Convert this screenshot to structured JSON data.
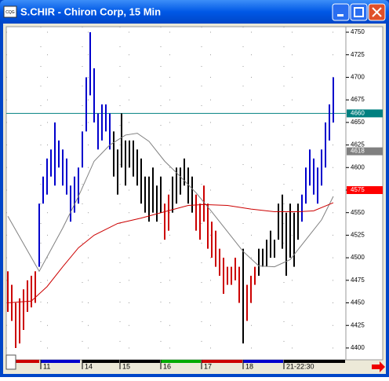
{
  "window": {
    "icon_text": "CQG",
    "title": "S.CHIR - Chiron Corp, 15 Min"
  },
  "chart_data": {
    "type": "range",
    "xlim": [
      -0.4,
      86.2
    ],
    "ylim": [
      4386.9,
      4756.1
    ],
    "yticks": [
      4400,
      4425,
      4450,
      4475,
      4500,
      4525,
      4550,
      4575,
      4600,
      4625,
      4650,
      4675,
      4700,
      4725,
      4750
    ],
    "xticks": [
      {
        "value": 8.4,
        "label": "11"
      },
      {
        "value": 19,
        "label": "14"
      },
      {
        "value": 28.6,
        "label": "15"
      },
      {
        "value": 39,
        "label": "16"
      },
      {
        "value": 49.4,
        "label": "17"
      },
      {
        "value": 60,
        "label": "18"
      },
      {
        "value": 70.4,
        "label": "21-22:30"
      }
    ],
    "grid": true,
    "low": [
      4440,
      4430,
      4400,
      4405,
      4420,
      4440,
      4445,
      4450,
      4490,
      4560,
      4570,
      4590,
      4580,
      4600,
      4580,
      4570,
      4540,
      4550,
      4560,
      4600,
      4640,
      4680,
      4650,
      4620,
      4630,
      4640,
      4620,
      4590,
      4570,
      4600,
      4580,
      4600,
      4590,
      4580,
      4560,
      4550,
      4540,
      4550,
      4540,
      4550,
      4520,
      4530,
      4550,
      4560,
      4570,
      4580,
      4560,
      4550,
      4530,
      4520,
      4540,
      4510,
      4500,
      4490,
      4480,
      4460,
      4470,
      4470,
      4475,
      4450,
      4405,
      4430,
      4450,
      4470,
      4480,
      4490,
      4490,
      4500,
      4500,
      4520,
      4510,
      4480,
      4500,
      4490,
      4520,
      4540,
      4560,
      4580,
      4570,
      4560,
      4580,
      4600,
      4630,
      4650
    ],
    "high": [
      4485,
      4470,
      4450,
      4455,
      4465,
      4475,
      4480,
      4485,
      4560,
      4590,
      4610,
      4620,
      4650,
      4630,
      4620,
      4610,
      4580,
      4590,
      4600,
      4640,
      4700,
      4750,
      4710,
      4660,
      4670,
      4670,
      4660,
      4640,
      4620,
      4660,
      4630,
      4630,
      4630,
      4620,
      4610,
      4590,
      4590,
      4600,
      4580,
      4590,
      4560,
      4570,
      4590,
      4600,
      4600,
      4610,
      4600,
      4590,
      4570,
      4560,
      4580,
      4560,
      4540,
      4530,
      4510,
      4500,
      4490,
      4490,
      4500,
      4490,
      4510,
      4470,
      4480,
      4490,
      4510,
      4510,
      4520,
      4530,
      4520,
      4560,
      4570,
      4550,
      4560,
      4550,
      4560,
      4570,
      4600,
      4620,
      4610,
      4600,
      4620,
      4650,
      4670,
      4700
    ],
    "colors": [
      "#c00",
      "#c00",
      "#c00",
      "#c00",
      "#c00",
      "#c00",
      "#c00",
      "#c00",
      "#00c",
      "#00c",
      "#00c",
      "#00c",
      "#00c",
      "#00c",
      "#00c",
      "#00c",
      "#00c",
      "#00c",
      "#00c",
      "#00c",
      "#00c",
      "#00c",
      "#00c",
      "#00c",
      "#00c",
      "#00c",
      "#00c",
      "#000",
      "#000",
      "#000",
      "#000",
      "#000",
      "#000",
      "#000",
      "#000",
      "#000",
      "#000",
      "#000",
      "#000",
      "#000",
      "#c00",
      "#c00",
      "#000",
      "#000",
      "#000",
      "#000",
      "#000",
      "#000",
      "#c00",
      "#c00",
      "#c00",
      "#c00",
      "#c00",
      "#c00",
      "#c00",
      "#c00",
      "#c00",
      "#c00",
      "#c00",
      "#c00",
      "#000",
      "#c00",
      "#c00",
      "#c00",
      "#000",
      "#000",
      "#000",
      "#000",
      "#000",
      "#000",
      "#000",
      "#000",
      "#000",
      "#000",
      "#000",
      "#00c",
      "#00c",
      "#00c",
      "#00c",
      "#00c",
      "#00c",
      "#00c",
      "#00c",
      "#00c"
    ],
    "lines": [
      {
        "color": "#808080",
        "x": [
          0,
          8,
          14,
          18,
          22,
          26,
          30,
          33,
          36,
          40,
          44,
          48,
          52,
          56,
          60,
          64,
          68,
          72,
          76,
          80,
          83
        ],
        "values": [
          4546,
          4485,
          4533,
          4568,
          4607,
          4625,
          4636,
          4638,
          4629,
          4607,
          4590,
          4572,
          4551,
          4529,
          4507,
          4491,
          4490,
          4498,
          4520,
          4542,
          4568
        ]
      },
      {
        "color": "#cc0000",
        "x": [
          0,
          6,
          10,
          14,
          18,
          22,
          28,
          34,
          40,
          46,
          50,
          56,
          62,
          68,
          74,
          78,
          83
        ],
        "values": [
          4450,
          4452,
          4468,
          4490,
          4511,
          4525,
          4538,
          4544,
          4551,
          4558,
          4559,
          4558,
          4554,
          4551,
          4551,
          4552,
          4561
        ]
      }
    ],
    "markers": [
      {
        "value": 4660,
        "color": "#008080",
        "line": true
      },
      {
        "value": 4618,
        "color": "#808080",
        "line": false
      },
      {
        "value": 4575,
        "color": "#ff0000",
        "line": false
      }
    ]
  }
}
